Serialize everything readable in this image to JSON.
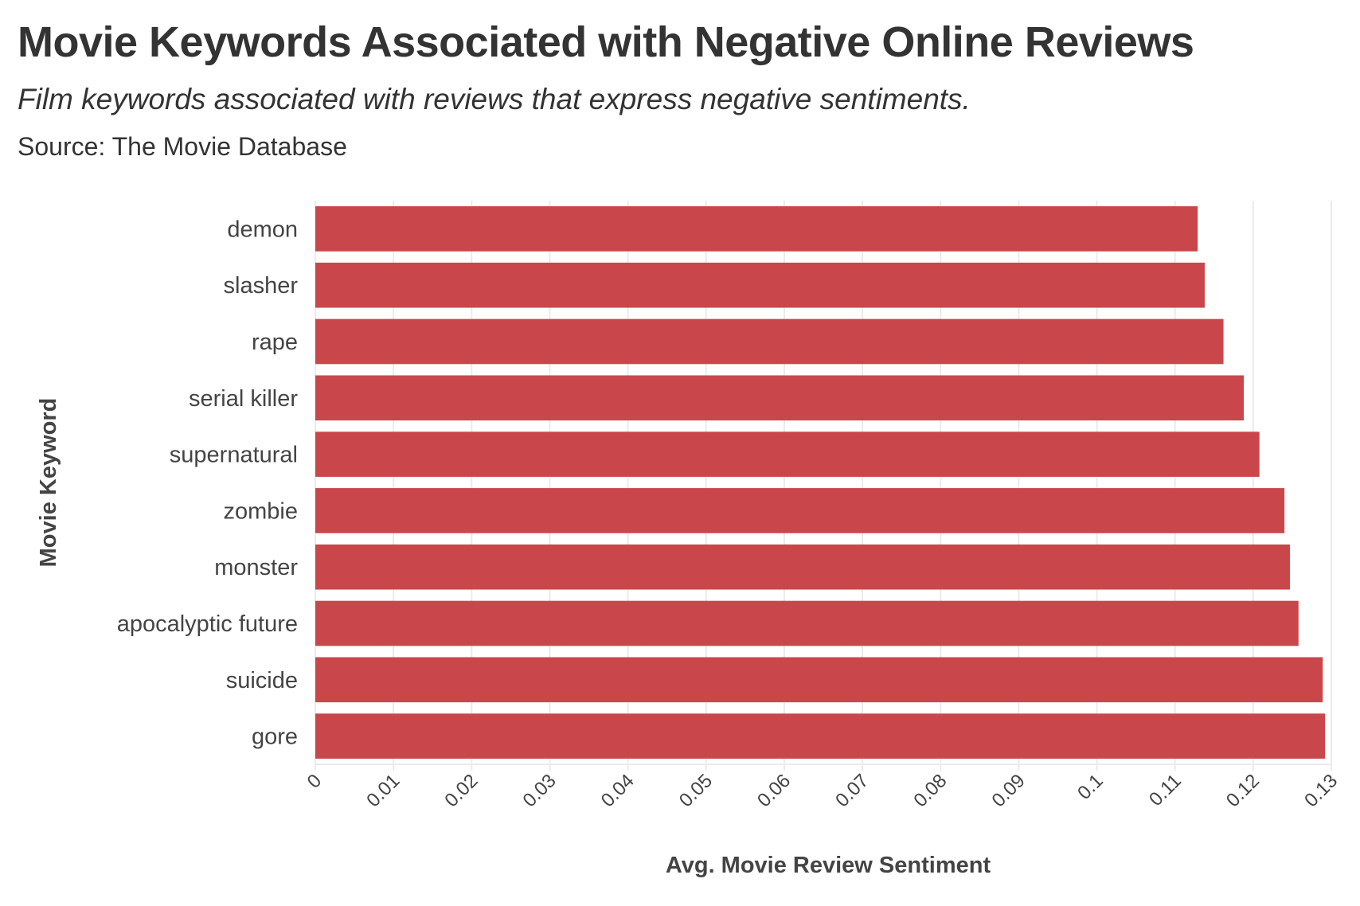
{
  "title": "Movie Keywords Associated with Negative Online Reviews",
  "subtitle": "Film keywords associated with reviews that express negative sentiments.",
  "source": "Source: The Movie Database",
  "chart_data": {
    "type": "bar",
    "orientation": "horizontal",
    "categories": [
      "demon",
      "slasher",
      "rape",
      "serial killer",
      "supernatural",
      "zombie",
      "monster",
      "apocalyptic future",
      "suicide",
      "gore"
    ],
    "values": [
      0.1129,
      0.1138,
      0.1162,
      0.1188,
      0.1208,
      0.124,
      0.1247,
      0.1258,
      0.1289,
      0.1292
    ],
    "xlabel": "Avg. Movie Review Sentiment",
    "ylabel": "Movie Keyword",
    "xlim": [
      0,
      0.13
    ],
    "xticks": [
      "0",
      "0.01",
      "0.02",
      "0.03",
      "0.04",
      "0.05",
      "0.06",
      "0.07",
      "0.08",
      "0.09",
      "0.1",
      "0.11",
      "0.12",
      "0.13"
    ],
    "grid": true,
    "legend": "none",
    "bar_color": "#c9474a"
  }
}
